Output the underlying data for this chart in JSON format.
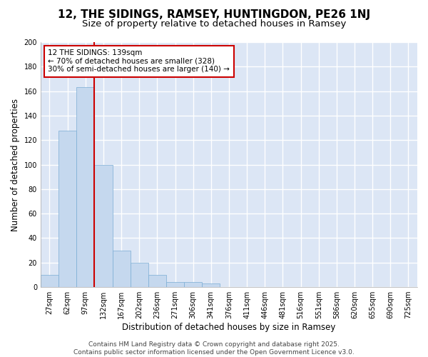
{
  "title": "12, THE SIDINGS, RAMSEY, HUNTINGDON, PE26 1NJ",
  "subtitle": "Size of property relative to detached houses in Ramsey",
  "xlabel": "Distribution of detached houses by size in Ramsey",
  "ylabel": "Number of detached properties",
  "bar_labels": [
    "27sqm",
    "62sqm",
    "97sqm",
    "132sqm",
    "167sqm",
    "202sqm",
    "236sqm",
    "271sqm",
    "306sqm",
    "341sqm",
    "376sqm",
    "411sqm",
    "446sqm",
    "481sqm",
    "516sqm",
    "551sqm",
    "586sqm",
    "620sqm",
    "655sqm",
    "690sqm",
    "725sqm"
  ],
  "bar_values": [
    10,
    128,
    163,
    100,
    30,
    20,
    10,
    4,
    4,
    3,
    0,
    0,
    0,
    0,
    0,
    0,
    0,
    0,
    0,
    0,
    0
  ],
  "bar_color": "#c5d8ee",
  "bar_edge_color": "#7aadd4",
  "figure_bg": "#ffffff",
  "axes_bg": "#dce6f5",
  "grid_color": "#ffffff",
  "vline_color": "#cc0000",
  "vline_x": 3.0,
  "annotation_text": "12 THE SIDINGS: 139sqm\n← 70% of detached houses are smaller (328)\n30% of semi-detached houses are larger (140) →",
  "annotation_box_facecolor": "#ffffff",
  "annotation_box_edgecolor": "#cc0000",
  "ylim": [
    0,
    200
  ],
  "yticks": [
    0,
    20,
    40,
    60,
    80,
    100,
    120,
    140,
    160,
    180,
    200
  ],
  "footer_text": "Contains HM Land Registry data © Crown copyright and database right 2025.\nContains public sector information licensed under the Open Government Licence v3.0.",
  "title_fontsize": 11,
  "subtitle_fontsize": 9.5,
  "axis_label_fontsize": 8.5,
  "tick_fontsize": 7,
  "annotation_fontsize": 7.5,
  "footer_fontsize": 6.5
}
